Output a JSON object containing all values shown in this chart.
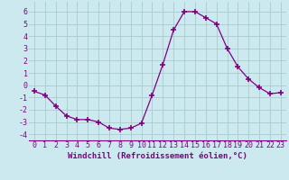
{
  "x": [
    0,
    1,
    2,
    3,
    4,
    5,
    6,
    7,
    8,
    9,
    10,
    11,
    12,
    13,
    14,
    15,
    16,
    17,
    18,
    19,
    20,
    21,
    22,
    23
  ],
  "y": [
    -0.5,
    -0.8,
    -1.7,
    -2.5,
    -2.8,
    -2.8,
    -3.0,
    -3.5,
    -3.6,
    -3.5,
    -3.1,
    -0.8,
    1.7,
    4.5,
    6.0,
    6.0,
    5.5,
    5.0,
    3.0,
    1.5,
    0.5,
    -0.2,
    -0.7,
    -0.6
  ],
  "line_color": "#800080",
  "marker": "+",
  "marker_size": 4,
  "marker_linewidth": 1.2,
  "background_color": "#cce9f0",
  "grid_color": "#aacccc",
  "xlabel": "Windchill (Refroidissement éolien,°C)",
  "ylabel": "",
  "ylim": [
    -4.5,
    6.8
  ],
  "xlim": [
    -0.5,
    23.5
  ],
  "yticks": [
    -4,
    -3,
    -2,
    -1,
    0,
    1,
    2,
    3,
    4,
    5,
    6
  ],
  "xticks": [
    0,
    1,
    2,
    3,
    4,
    5,
    6,
    7,
    8,
    9,
    10,
    11,
    12,
    13,
    14,
    15,
    16,
    17,
    18,
    19,
    20,
    21,
    22,
    23
  ],
  "tick_color": "#800080",
  "label_fontsize": 6.5,
  "tick_fontsize": 6.0
}
